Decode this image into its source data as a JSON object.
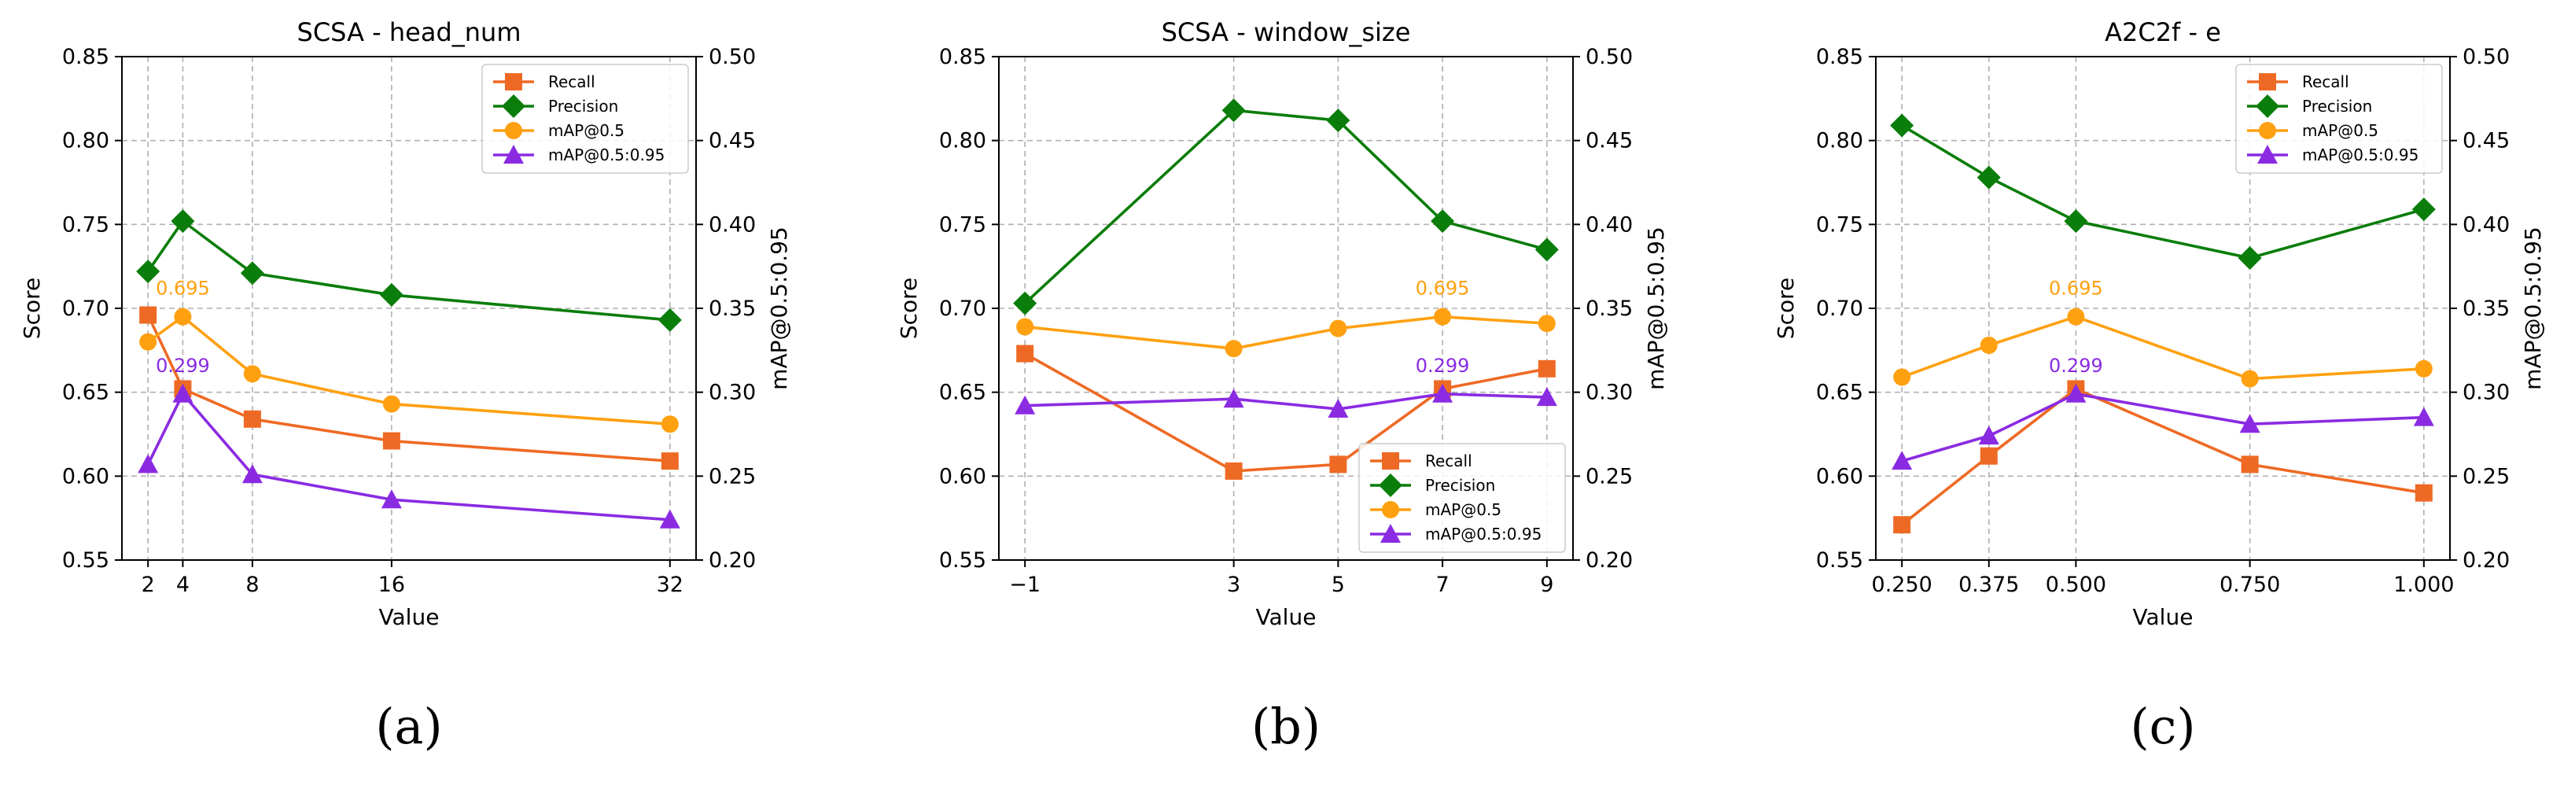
{
  "chart_data": [
    {
      "type": "line",
      "panel_label": "(a)",
      "title": "SCSA - head_num",
      "xlabel": "Value",
      "ylabel": "Score",
      "y2label": "mAP@0.5:0.95",
      "x": [
        2,
        4,
        8,
        16,
        32
      ],
      "xticks": [
        "2",
        "4",
        "8",
        "16",
        "32"
      ],
      "xlim": [
        0.5,
        33.5
      ],
      "ylim": [
        0.55,
        0.85
      ],
      "yticks": [
        "0.55",
        "0.60",
        "0.65",
        "0.70",
        "0.75",
        "0.80",
        "0.85"
      ],
      "y2lim": [
        0.2,
        0.5
      ],
      "y2ticks": [
        "0.20",
        "0.25",
        "0.30",
        "0.35",
        "0.40",
        "0.45",
        "0.50"
      ],
      "grid": true,
      "legend_position": "top-right",
      "series": [
        {
          "name": "Recall",
          "axis": "left",
          "marker": "square",
          "color": "#ee6a24",
          "values": [
            0.696,
            0.652,
            0.634,
            0.621,
            0.609
          ]
        },
        {
          "name": "Precision",
          "axis": "left",
          "marker": "diamond",
          "color": "#0a7d0a",
          "values": [
            0.722,
            0.752,
            0.721,
            0.708,
            0.693
          ]
        },
        {
          "name": "mAP@0.5",
          "axis": "left",
          "marker": "circle",
          "color": "#ffa010",
          "values": [
            0.68,
            0.695,
            0.661,
            0.643,
            0.631
          ]
        },
        {
          "name": "mAP@0.5:0.95",
          "axis": "right",
          "marker": "triangle",
          "color": "#8a2be2",
          "values": [
            0.257,
            0.299,
            0.251,
            0.236,
            0.224
          ]
        }
      ],
      "annotations": [
        {
          "text": "0.695",
          "series": "mAP@0.5",
          "x": 4,
          "y": 0.695,
          "color": "#ffa010"
        },
        {
          "text": "0.299",
          "series": "mAP@0.5:0.95",
          "x": 4,
          "y": 0.299,
          "color": "#8a2be2"
        }
      ]
    },
    {
      "type": "line",
      "panel_label": "(b)",
      "title": "SCSA - window_size",
      "xlabel": "Value",
      "ylabel": "Score",
      "y2label": "mAP@0.5:0.95",
      "x": [
        -1,
        3,
        5,
        7,
        9
      ],
      "xticks": [
        "−1",
        "3",
        "5",
        "7",
        "9"
      ],
      "xlim": [
        -1.5,
        9.5
      ],
      "ylim": [
        0.55,
        0.85
      ],
      "yticks": [
        "0.55",
        "0.60",
        "0.65",
        "0.70",
        "0.75",
        "0.80",
        "0.85"
      ],
      "y2lim": [
        0.2,
        0.5
      ],
      "y2ticks": [
        "0.20",
        "0.25",
        "0.30",
        "0.35",
        "0.40",
        "0.45",
        "0.50"
      ],
      "grid": true,
      "legend_position": "bottom-right",
      "series": [
        {
          "name": "Recall",
          "axis": "left",
          "marker": "square",
          "color": "#ee6a24",
          "values": [
            0.673,
            0.603,
            0.607,
            0.652,
            0.664
          ]
        },
        {
          "name": "Precision",
          "axis": "left",
          "marker": "diamond",
          "color": "#0a7d0a",
          "values": [
            0.703,
            0.818,
            0.812,
            0.752,
            0.735
          ]
        },
        {
          "name": "mAP@0.5",
          "axis": "left",
          "marker": "circle",
          "color": "#ffa010",
          "values": [
            0.689,
            0.676,
            0.688,
            0.695,
            0.691
          ]
        },
        {
          "name": "mAP@0.5:0.95",
          "axis": "right",
          "marker": "triangle",
          "color": "#8a2be2",
          "values": [
            0.292,
            0.296,
            0.29,
            0.299,
            0.297
          ]
        }
      ],
      "annotations": [
        {
          "text": "0.695",
          "series": "mAP@0.5",
          "x": 7,
          "y": 0.695,
          "color": "#ffa010"
        },
        {
          "text": "0.299",
          "series": "mAP@0.5:0.95",
          "x": 7,
          "y": 0.299,
          "color": "#8a2be2"
        }
      ]
    },
    {
      "type": "line",
      "panel_label": "(c)",
      "title": "A2C2f - e",
      "xlabel": "Value",
      "ylabel": "Score",
      "y2label": "mAP@0.5:0.95",
      "x": [
        0.25,
        0.375,
        0.5,
        0.75,
        1.0
      ],
      "xticks": [
        "0.250",
        "0.375",
        "0.500",
        "0.750",
        "1.000"
      ],
      "xlim": [
        0.2125,
        1.0375
      ],
      "ylim": [
        0.55,
        0.85
      ],
      "yticks": [
        "0.55",
        "0.60",
        "0.65",
        "0.70",
        "0.75",
        "0.80",
        "0.85"
      ],
      "y2lim": [
        0.2,
        0.5
      ],
      "y2ticks": [
        "0.20",
        "0.25",
        "0.30",
        "0.35",
        "0.40",
        "0.45",
        "0.50"
      ],
      "grid": true,
      "legend_position": "top-right",
      "series": [
        {
          "name": "Recall",
          "axis": "left",
          "marker": "square",
          "color": "#ee6a24",
          "values": [
            0.571,
            0.612,
            0.652,
            0.607,
            0.59
          ]
        },
        {
          "name": "Precision",
          "axis": "left",
          "marker": "diamond",
          "color": "#0a7d0a",
          "values": [
            0.809,
            0.778,
            0.752,
            0.73,
            0.759
          ]
        },
        {
          "name": "mAP@0.5",
          "axis": "left",
          "marker": "circle",
          "color": "#ffa010",
          "values": [
            0.659,
            0.678,
            0.695,
            0.658,
            0.664
          ]
        },
        {
          "name": "mAP@0.5:0.95",
          "axis": "right",
          "marker": "triangle",
          "color": "#8a2be2",
          "values": [
            0.259,
            0.274,
            0.299,
            0.281,
            0.285
          ]
        }
      ],
      "annotations": [
        {
          "text": "0.695",
          "series": "mAP@0.5",
          "x": 0.5,
          "y": 0.695,
          "color": "#ffa010"
        },
        {
          "text": "0.299",
          "series": "mAP@0.5:0.95",
          "x": 0.5,
          "y": 0.299,
          "color": "#8a2be2"
        }
      ]
    }
  ]
}
